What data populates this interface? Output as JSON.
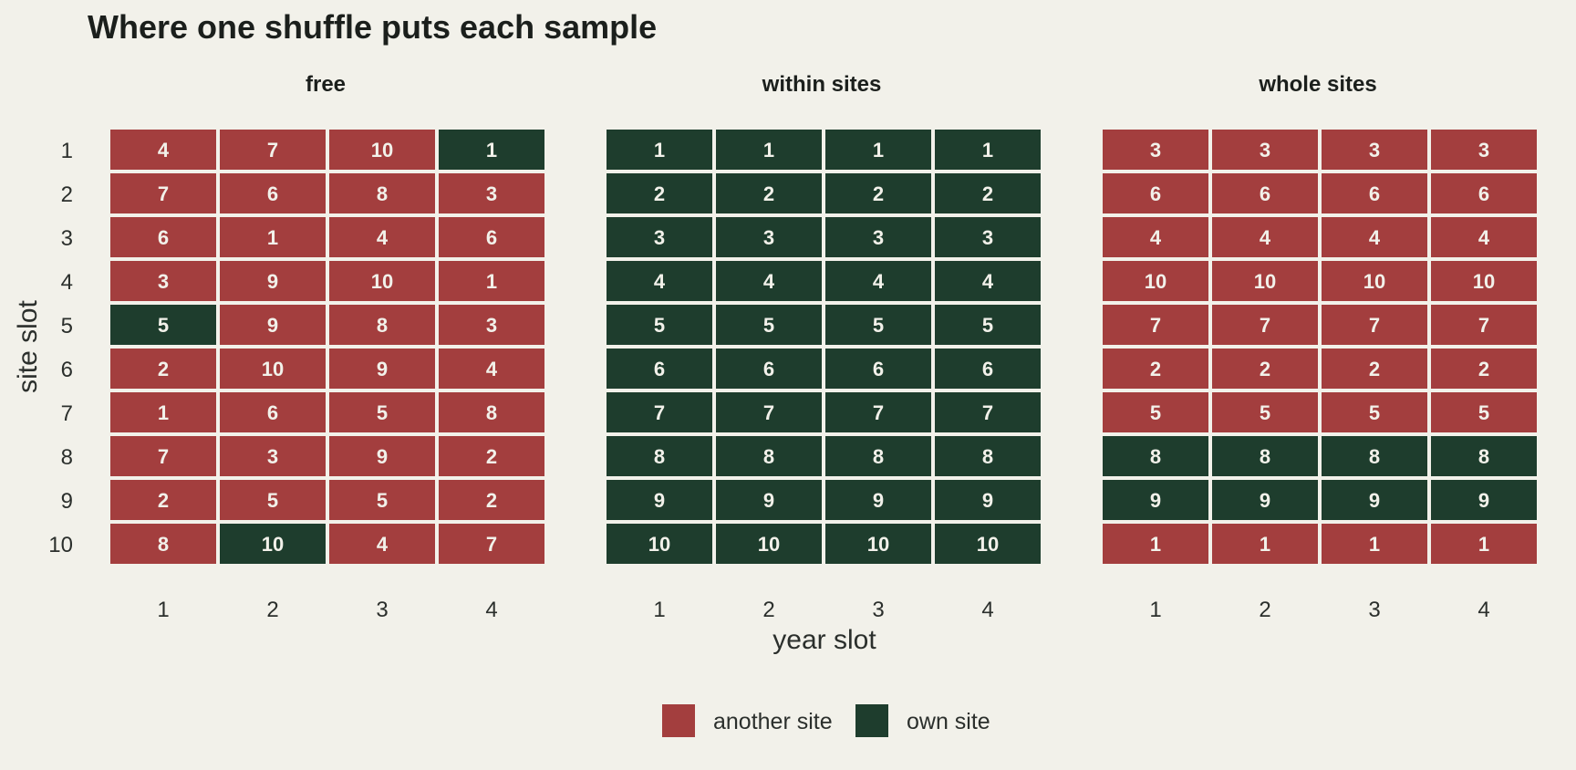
{
  "chart_data": {
    "type": "heatmap",
    "title": "Where one shuffle puts each sample",
    "xlabel": "year slot",
    "ylabel": "site slot",
    "x_ticks": [
      "1",
      "2",
      "3",
      "4"
    ],
    "y_ticks": [
      "1",
      "2",
      "3",
      "4",
      "5",
      "6",
      "7",
      "8",
      "9",
      "10"
    ],
    "legend": {
      "placement": "bottom",
      "items": [
        {
          "label": "another site",
          "color": "#a33e3e"
        },
        {
          "label": "own site",
          "color": "#1e3d2d"
        }
      ]
    },
    "colors": {
      "another": "#a33e3e",
      "own": "#1e3d2d",
      "background": "#f2f1ea"
    },
    "panels": [
      {
        "title": "free",
        "values": [
          [
            4,
            7,
            10,
            1
          ],
          [
            7,
            6,
            8,
            3
          ],
          [
            6,
            1,
            4,
            6
          ],
          [
            3,
            9,
            10,
            1
          ],
          [
            5,
            9,
            8,
            3
          ],
          [
            2,
            10,
            9,
            4
          ],
          [
            1,
            6,
            5,
            8
          ],
          [
            7,
            3,
            9,
            2
          ],
          [
            2,
            5,
            5,
            2
          ],
          [
            8,
            10,
            4,
            7
          ]
        ]
      },
      {
        "title": "within sites",
        "values": [
          [
            1,
            1,
            1,
            1
          ],
          [
            2,
            2,
            2,
            2
          ],
          [
            3,
            3,
            3,
            3
          ],
          [
            4,
            4,
            4,
            4
          ],
          [
            5,
            5,
            5,
            5
          ],
          [
            6,
            6,
            6,
            6
          ],
          [
            7,
            7,
            7,
            7
          ],
          [
            8,
            8,
            8,
            8
          ],
          [
            9,
            9,
            9,
            9
          ],
          [
            10,
            10,
            10,
            10
          ]
        ]
      },
      {
        "title": "whole sites",
        "values": [
          [
            3,
            3,
            3,
            3
          ],
          [
            6,
            6,
            6,
            6
          ],
          [
            4,
            4,
            4,
            4
          ],
          [
            10,
            10,
            10,
            10
          ],
          [
            7,
            7,
            7,
            7
          ],
          [
            2,
            2,
            2,
            2
          ],
          [
            5,
            5,
            5,
            5
          ],
          [
            8,
            8,
            8,
            8
          ],
          [
            9,
            9,
            9,
            9
          ],
          [
            1,
            1,
            1,
            1
          ]
        ]
      }
    ]
  }
}
